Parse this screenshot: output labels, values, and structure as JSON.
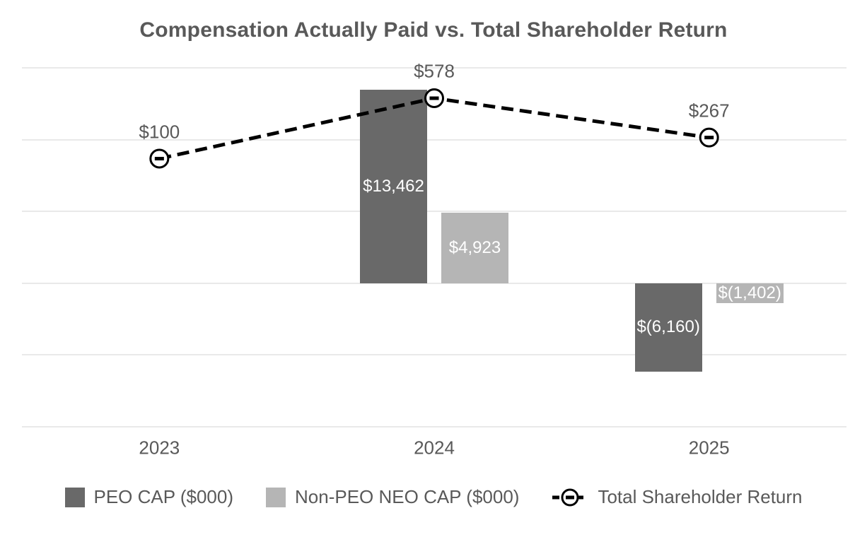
{
  "chart_data": {
    "type": "bar+line",
    "title": "Compensation Actually Paid vs. Total Shareholder Return",
    "categories": [
      "2023",
      "2024",
      "2025"
    ],
    "series": [
      {
        "type": "bar",
        "name": "PEO CAP ($000)",
        "axis": "y1",
        "color": "#696969",
        "values": [
          null,
          13462,
          -6160
        ],
        "data_labels": [
          "",
          "$13,462",
          "$(6,160)"
        ]
      },
      {
        "type": "bar",
        "name": "Non-PEO NEO CAP ($000)",
        "axis": "y1",
        "color": "#b5b5b5",
        "values": [
          null,
          4923,
          -1402
        ],
        "data_labels": [
          "",
          "$4,923",
          "$(1,402)"
        ]
      },
      {
        "type": "line",
        "name": "Total Shareholder Return",
        "axis": "y2",
        "color": "#000000",
        "dashed": true,
        "marker": "open-circle",
        "values": [
          100,
          578,
          267
        ],
        "data_labels": [
          "$100",
          "$578",
          "$267"
        ]
      }
    ],
    "y1_axis": {
      "min": -10000,
      "max": 15000,
      "step": 5000,
      "tick_labels_visible": false
    },
    "y2_axis": {
      "tick_labels_visible": false
    },
    "grid": true,
    "legend_position": "bottom",
    "colors": {
      "text": "#595959",
      "gridline": "#e9e9e9",
      "bar_label_text": "#ffffff",
      "line": "#000000"
    }
  }
}
